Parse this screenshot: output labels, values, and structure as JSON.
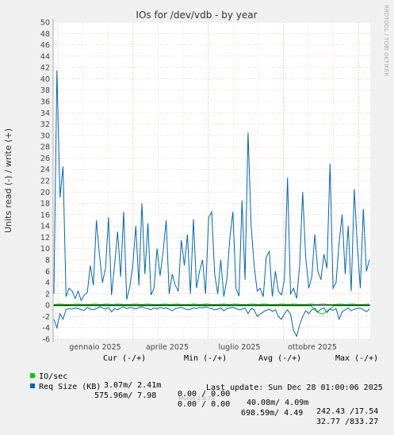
{
  "chart_data": {
    "type": "line",
    "title": "IOs for /dev/vdb - by year",
    "ylabel": "Units read (-) / write (+)",
    "ylim": [
      -6,
      50
    ],
    "y_ticks": [
      "-6",
      "-4",
      "-2",
      "0",
      "2",
      "4",
      "6",
      "8",
      "10",
      "12",
      "14",
      "16",
      "18",
      "20",
      "22",
      "24",
      "26",
      "28",
      "30",
      "32",
      "34",
      "36",
      "38",
      "40",
      "42",
      "44",
      "46",
      "48",
      "50"
    ],
    "x_labels": [
      "gennaio 2025",
      "aprile 2025",
      "luglio 2025",
      "ottobre 2025"
    ],
    "grid": true,
    "series": [
      {
        "name": "IO/sec",
        "color": "#00cc00",
        "write": [
          0.1,
          0.2,
          0.1,
          0.1,
          0.2,
          0.1,
          0.1,
          0.2,
          0.1,
          0.2,
          0.1,
          0.2,
          0.1,
          0.1,
          0.2,
          0.1,
          0.2,
          0.1,
          0.1,
          0.2,
          0.1,
          0.2,
          0.1,
          0.1,
          0.2,
          0.1,
          0.2,
          0.1,
          0.1,
          0.2,
          0.1,
          0.2,
          0.1,
          0.1,
          0.2,
          0.1,
          0.2,
          0.1,
          0.1,
          0.2,
          0.1,
          0.2,
          0.1,
          0.1,
          0.2,
          0.1,
          0.2,
          0.1,
          0.1,
          0.2,
          0.1,
          0.2,
          0.1,
          0.1,
          0.2
        ],
        "read": [
          -0.1,
          -0.1,
          -0.1,
          -0.1,
          -0.1,
          -0.1,
          -0.1,
          -0.1,
          -0.1,
          -0.1,
          -0.1,
          -0.1,
          -0.1,
          -0.1,
          -0.1,
          -0.1,
          -0.1,
          -0.1,
          -0.1,
          -0.1,
          -0.1,
          -0.1,
          -0.1,
          -0.1,
          -0.1,
          -0.1,
          -0.1,
          -0.1,
          -0.1,
          -0.1,
          -0.1,
          -0.1,
          -0.1,
          -0.1,
          -0.1,
          -0.1,
          -0.1,
          -0.1,
          -0.1,
          -0.1,
          -0.1,
          -0.1,
          -0.1,
          -0.1,
          -0.1,
          -1.2,
          -1.6,
          -0.8,
          -0.1,
          -0.1,
          -0.1,
          -0.1,
          -0.1,
          -0.1,
          -0.1
        ]
      },
      {
        "name": "Req Size (KB)",
        "color": "#0066b3",
        "write": [
          2.0,
          41.5,
          19.0,
          24.5,
          1.5,
          3.0,
          2.5,
          1.2,
          2.5,
          0.8,
          1.8,
          2.2,
          7.0,
          3.5,
          15.0,
          9.0,
          4.0,
          6.5,
          15.5,
          1.8,
          7.0,
          13.0,
          5.0,
          16.5,
          1.0,
          3.2,
          7.0,
          14.0,
          3.5,
          18.0,
          5.5,
          14.5,
          1.8,
          3.0,
          10.0,
          5.2,
          9.5,
          15.0,
          2.0,
          5.5,
          3.5,
          2.5,
          11.5,
          7.0,
          12.5,
          2.0,
          15.2,
          3.0,
          6.0,
          8.0,
          2.0,
          15.5,
          16.5,
          5.5,
          2.0,
          8.0,
          1.5,
          4.5,
          12.0,
          16.5,
          3.0,
          1.6,
          18.5,
          4.5,
          30.5,
          14.0,
          7.0,
          2.5,
          3.0,
          1.5,
          8.5,
          9.5,
          1.5,
          6.0,
          2.5,
          1.8,
          4.5,
          22.5,
          2.0,
          3.0,
          1.2,
          7.0,
          20.0,
          8.5,
          3.0,
          5.0,
          12.5,
          6.0,
          4.5,
          9.0,
          6.5,
          25.0,
          3.0,
          4.0,
          11.0,
          16.0,
          5.5,
          14.0,
          2.5,
          20.5,
          10.5,
          3.0,
          17.0,
          6.0,
          8.0
        ],
        "read": [
          -2.5,
          -4.0,
          -1.5,
          -2.5,
          -0.8,
          -0.6,
          -0.7,
          -0.5,
          -0.6,
          -0.8,
          -0.9,
          -0.4,
          -0.7,
          -0.8,
          -0.6,
          -0.3,
          -0.5,
          -0.7,
          -0.4,
          -1.2,
          -0.6,
          -0.8,
          -0.5,
          -0.3,
          -0.6,
          -0.4,
          -0.5,
          -0.7,
          -0.4,
          -0.3,
          -0.5,
          -0.6,
          -0.8,
          -0.5,
          -0.7,
          -0.4,
          -0.6,
          -0.5,
          -0.7,
          -1.0,
          -0.6,
          -0.5,
          -0.4,
          -0.6,
          -0.8,
          -0.7,
          -0.5,
          -0.6,
          -0.4,
          -0.5,
          -0.3,
          -0.5,
          -0.6,
          -0.8,
          -0.7,
          -0.5,
          -1.0,
          -0.6,
          -0.5,
          -0.4,
          -0.6,
          -0.8,
          -0.7,
          -0.5,
          -1.5,
          -0.6,
          -0.8,
          -2.0,
          -1.6,
          -1.2,
          -0.9,
          -0.7,
          -1.1,
          -0.8,
          -2.0,
          -2.5,
          -1.5,
          -0.8,
          -1.6,
          -4.5,
          -5.5,
          -3.5,
          -2.0,
          -1.0,
          -1.5,
          -0.8,
          -0.6,
          -1.2,
          -0.7,
          -0.5,
          -1.3,
          -0.7,
          -0.9,
          -0.6,
          -2.5,
          -1.2,
          -0.8,
          -0.5,
          -1.0,
          -0.7,
          -0.6,
          -0.5,
          -0.8,
          -1.2,
          -0.6
        ]
      }
    ],
    "legend_header": [
      "Cur (-/+)",
      "Min (-/+)",
      "Avg (-/+)",
      "Max (-/+)"
    ],
    "legend_rows": [
      {
        "label": "IO/sec",
        "color": "#00cc00",
        "cur": "3.07m/ 2.41m",
        "min": "0.00 / 0.00",
        "avg": "40.08m/ 4.09m",
        "max": "242.43 /17.54"
      },
      {
        "label": "Req Size (KB)",
        "color": "#0066b3",
        "cur": "575.96m/ 7.98",
        "min": "0.00 / 0.00",
        "avg": "698.59m/ 4.49",
        "max": "32.77 /833.27"
      }
    ]
  },
  "footer": {
    "last_update": "Last update: Sun Dec 28 01:00:06 2025",
    "version": "Munin 2.0.73",
    "side_label": "RRDTOOL / TOBI OETIKER"
  }
}
